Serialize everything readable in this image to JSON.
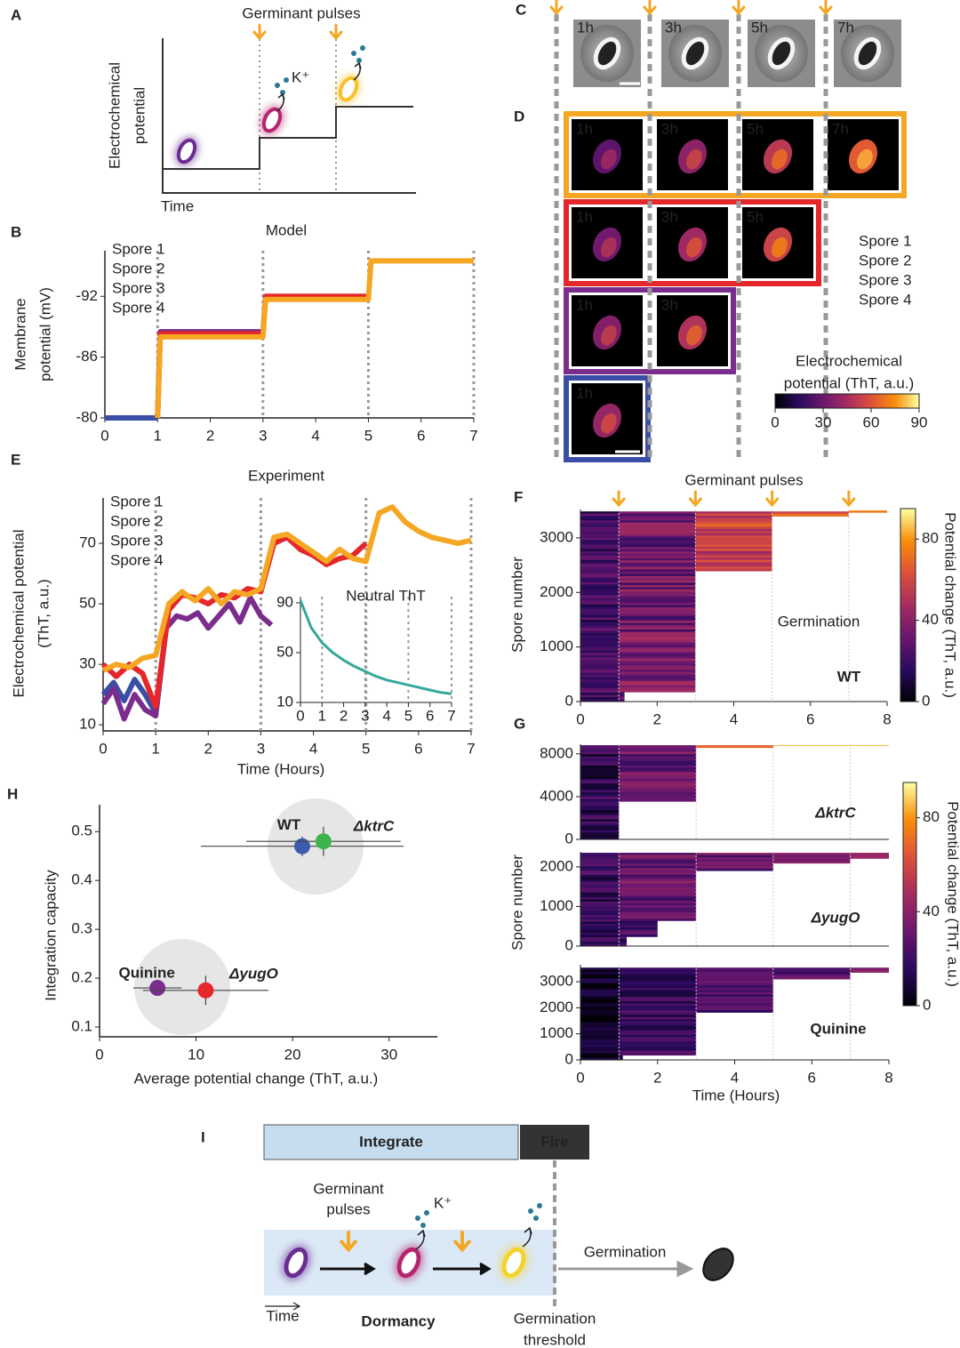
{
  "panel_labels": [
    "A",
    "B",
    "C",
    "D",
    "E",
    "F",
    "G",
    "H",
    "I"
  ],
  "panel_a": {
    "pulses_label": "Germinant pulses",
    "ylabel": [
      "Electrochemical",
      "potential"
    ],
    "xlabel": "Time",
    "ion": "K⁺"
  },
  "panel_c": {
    "times": [
      "1h",
      "3h",
      "5h",
      "7h"
    ]
  },
  "panel_d": {
    "rows": [
      [
        "1h",
        "3h",
        "5h",
        "7h"
      ],
      [
        "1h",
        "3h",
        "5h"
      ],
      [
        "1h",
        "3h"
      ],
      [
        "1h"
      ]
    ],
    "legend": [
      {
        "name": "Spore 1",
        "color": "#3b4ea6"
      },
      {
        "name": "Spore 2",
        "color": "#7a2d8c"
      },
      {
        "name": "Spore 3",
        "color": "#e5262b"
      },
      {
        "name": "Spore 4",
        "color": "#f5a623"
      }
    ],
    "colorbar_title": [
      "Electrochemical",
      "potential (ThT, a.u.)"
    ],
    "colorbar_lim": [
      0,
      90
    ],
    "colorbar_ticks": [
      0,
      30,
      60,
      90
    ]
  },
  "chart_data": [
    {
      "type": "line",
      "title": "Model",
      "ylabel": [
        "Membrane",
        "potential (mV)"
      ],
      "xlim": [
        0,
        7
      ],
      "ylim": [
        -80,
        -96.5
      ],
      "xticks": [
        0,
        1,
        2,
        3,
        4,
        5,
        6,
        7
      ],
      "yticks": [
        -80,
        -86,
        -92
      ],
      "pulses": [
        1,
        3,
        5,
        7
      ],
      "legend": "upper left",
      "series": [
        {
          "name": "Spore 1",
          "color": "#3b4ea6",
          "x": [
            0,
            1
          ],
          "values": [
            -80,
            -80
          ]
        },
        {
          "name": "Spore 2",
          "color": "#7a2d8c",
          "x": [
            1,
            1.05,
            3
          ],
          "values": [
            -80,
            -88.5,
            -88.5
          ]
        },
        {
          "name": "Spore 3",
          "color": "#e5262b",
          "x": [
            1,
            1.05,
            3,
            3.05,
            5
          ],
          "values": [
            -80,
            -88.3,
            -88.3,
            -92,
            -92
          ]
        },
        {
          "name": "Spore 4",
          "color": "#f5a623",
          "x": [
            1,
            1.05,
            3,
            3.05,
            5,
            5.05,
            7
          ],
          "values": [
            -80,
            -88,
            -88,
            -91.7,
            -91.7,
            -95.5,
            -95.5
          ]
        }
      ]
    },
    {
      "type": "line",
      "title": "Experiment",
      "ylabel": [
        "Electrochemical potential",
        "(ThT, a.u.)"
      ],
      "xlabel": "Time (Hours)",
      "xlim": [
        0,
        7
      ],
      "ylim": [
        8,
        85
      ],
      "xticks": [
        0,
        1,
        2,
        3,
        4,
        5,
        6,
        7
      ],
      "yticks": [
        10,
        30,
        50,
        70
      ],
      "pulses": [
        1,
        3,
        5,
        7
      ],
      "legend": "upper left",
      "series": [
        {
          "name": "Spore 1",
          "color": "#3b4ea6",
          "x": [
            0,
            0.2,
            0.4,
            0.6,
            0.8,
            1
          ],
          "values": [
            20,
            24,
            18,
            25,
            20,
            14
          ]
        },
        {
          "name": "Spore 2",
          "color": "#7a2d8c",
          "x": [
            0,
            0.2,
            0.4,
            0.6,
            0.8,
            1,
            1.2,
            1.4,
            1.6,
            1.8,
            2,
            2.2,
            2.4,
            2.6,
            2.8,
            3,
            3.2
          ],
          "values": [
            17,
            22,
            12,
            20,
            15,
            13,
            42,
            46,
            45,
            47,
            42,
            46,
            50,
            44,
            52,
            46,
            43
          ]
        },
        {
          "name": "Spore 3",
          "color": "#e5262b",
          "x": [
            0,
            0.25,
            0.5,
            0.75,
            1,
            1.25,
            1.5,
            1.75,
            2,
            2.25,
            2.5,
            2.75,
            3,
            3.25,
            3.5,
            3.75,
            4,
            4.25,
            4.5,
            4.75,
            5
          ],
          "values": [
            30,
            26,
            30,
            27,
            16,
            48,
            53,
            52,
            50,
            53,
            52,
            55,
            54,
            70,
            72,
            68,
            66,
            63,
            65,
            66,
            70
          ]
        },
        {
          "name": "Spore 4",
          "color": "#f5a623",
          "x": [
            0,
            0.25,
            0.5,
            0.75,
            1,
            1.25,
            1.5,
            1.75,
            2,
            2.25,
            2.5,
            2.75,
            3,
            3.25,
            3.5,
            3.75,
            4,
            4.25,
            4.5,
            4.75,
            5,
            5.25,
            5.5,
            5.75,
            6,
            6.25,
            6.5,
            6.75,
            7
          ],
          "values": [
            28,
            30,
            29,
            32,
            33,
            50,
            54,
            51,
            55,
            50,
            54,
            53,
            55,
            72,
            73,
            70,
            67,
            64,
            68,
            65,
            64,
            80,
            82,
            77,
            74,
            72,
            71,
            70,
            71
          ]
        }
      ]
    },
    {
      "type": "line",
      "title": "Neutral ThT",
      "xlim": [
        0,
        7
      ],
      "ylim": [
        10,
        95
      ],
      "xticks": [
        0,
        1,
        2,
        3,
        4,
        5,
        6,
        7
      ],
      "yticks": [
        10,
        50,
        90
      ],
      "pulses": [
        1,
        3,
        5,
        7
      ],
      "x": [
        0,
        0.5,
        1,
        1.5,
        2,
        2.5,
        3,
        3.5,
        4,
        4.5,
        5,
        5.5,
        6,
        6.5,
        7
      ],
      "series": [
        {
          "color": "#35a89c",
          "values": [
            92,
            70,
            58,
            50,
            44,
            39,
            35,
            31,
            28,
            26,
            24,
            22,
            20,
            18,
            17
          ]
        }
      ]
    },
    {
      "type": "scatter",
      "xlabel": "Average potential change (ThT, a.u.)",
      "ylabel": "Integration capacity",
      "xlim": [
        0,
        35
      ],
      "ylim": [
        0.08,
        0.555
      ],
      "xticks": [
        0,
        10,
        20,
        30
      ],
      "yticks": [
        0.1,
        0.2,
        0.3,
        0.4,
        0.5
      ],
      "series": [
        {
          "name": "WT",
          "color": "#3b5bab",
          "x": [
            21
          ],
          "values": [
            0.47
          ],
          "xerr": [
            10.5
          ],
          "yerr": [
            0.02
          ]
        },
        {
          "name": "ΔktrC",
          "color": "#3cb44b",
          "x": [
            23.2
          ],
          "values": [
            0.48
          ],
          "xerr": [
            8
          ],
          "yerr": [
            0.03
          ]
        },
        {
          "name": "Quinine",
          "color": "#7a2d8c",
          "x": [
            6
          ],
          "values": [
            0.18
          ],
          "xerr": [
            2.5
          ],
          "yerr": [
            0.005
          ]
        },
        {
          "name": "ΔyugO",
          "color": "#e5262b",
          "x": [
            11
          ],
          "values": [
            0.175
          ],
          "xerr": [
            6.5
          ],
          "yerr": [
            0.03
          ]
        }
      ]
    },
    {
      "type": "heatmap",
      "pulses_label": "Germinant pulses",
      "ylabel": "Spore number",
      "note": "Germination",
      "label": "WT",
      "label_color": "#3b5bab",
      "xlim": [
        0,
        8
      ],
      "ylim": [
        0,
        3520
      ],
      "xticks": [
        0,
        2,
        4,
        6,
        8
      ],
      "yticks": [
        0,
        1000,
        2000,
        3000
      ],
      "pulses": [
        1,
        3,
        5,
        7
      ],
      "colorbar_label": "Potential change (ThT, a.u.)",
      "colorbar_lim": [
        0,
        95
      ],
      "colorbar_ticks": [
        0,
        40,
        80
      ]
    },
    {
      "type": "heatmap",
      "label": "ΔktrC",
      "label_color": "#3cb44b",
      "xlim": [
        0,
        8
      ],
      "ylim": [
        0,
        8900
      ],
      "yticks": [
        0,
        4000,
        8000
      ],
      "pulses": [
        1,
        3,
        5,
        7
      ]
    },
    {
      "type": "heatmap",
      "label": "ΔyugO",
      "label_color": "#e5262b",
      "xlim": [
        0,
        8
      ],
      "ylim": [
        0,
        2380
      ],
      "yticks": [
        0,
        1000,
        2000
      ],
      "pulses": [
        1,
        3,
        5,
        7
      ]
    },
    {
      "type": "heatmap",
      "label": "Quinine",
      "label_color": "#7a2d8c",
      "xlim": [
        0,
        8
      ],
      "ylim": [
        0,
        3650
      ],
      "xticks": [
        0,
        2,
        4,
        6,
        8
      ],
      "yticks": [
        0,
        1000,
        2000,
        3000
      ],
      "pulses": [
        1,
        3,
        5,
        7
      ]
    }
  ],
  "panel_g": {
    "ylabel": "Spore number",
    "xlabel": "Time (Hours)",
    "colorbar_label": "Potential change (ThT, a.u.)",
    "colorbar_lim": [
      0,
      95
    ],
    "colorbar_ticks": [
      0,
      40,
      80
    ]
  },
  "panel_i": {
    "integrate": "Integrate",
    "fire": "Fire",
    "pulses_label": [
      "Germinant",
      "pulses"
    ],
    "ion": "K⁺",
    "germination": "Germination",
    "time": "Time",
    "dormancy": "Dormancy",
    "threshold": [
      "Germination",
      "threshold"
    ]
  }
}
